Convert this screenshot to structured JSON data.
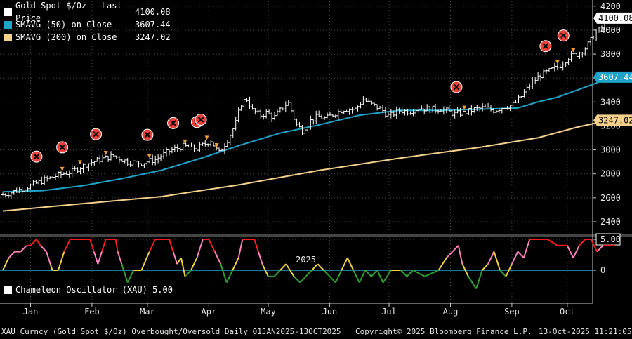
{
  "chart_data": {
    "type": "line",
    "title": "Gold Spot $/Oz",
    "legend": [
      {
        "name": "Gold Spot $/Oz - Last Price",
        "value": "4100.08",
        "color": "#ffffff"
      },
      {
        "name": "SMAVG (50)  on Close",
        "value": "3607.44",
        "color": "#1fa3c8"
      },
      {
        "name": "SMAVG (200)  on Close",
        "value": "3247.02",
        "color": "#f5d08a"
      }
    ],
    "y_axis": {
      "ticks": [
        2400,
        2600,
        2800,
        3000,
        3200,
        3400,
        3600,
        3800,
        4000,
        4200
      ],
      "range": [
        2300,
        4240
      ]
    },
    "x_axis": {
      "months": [
        "Jan",
        "Feb",
        "Mar",
        "Apr",
        "May",
        "Jun",
        "Jul",
        "Aug",
        "Sep",
        "Oct"
      ],
      "year_label": "2025",
      "range_days": [
        0,
        290
      ]
    },
    "last_value_tags": [
      {
        "value": 4100.08,
        "label": "4100.08",
        "color": "#ffffff",
        "text_color": "#000000"
      },
      {
        "value": 3607.44,
        "label": "3607.44",
        "color": "#1fa3c8",
        "text_color": "#ffffff"
      },
      {
        "value": 3247.02,
        "label": "3247.02",
        "color": "#f5d08a",
        "text_color": "#000000"
      }
    ],
    "series": [
      {
        "name": "Gold Spot $/Oz - Last Price",
        "style": "ohlc-bars",
        "color": "#ffffff",
        "points": [
          [
            0,
            2625
          ],
          [
            7,
            2660
          ],
          [
            14,
            2700
          ],
          [
            21,
            2750
          ],
          [
            28,
            2790
          ],
          [
            35,
            2820
          ],
          [
            42,
            2880
          ],
          [
            49,
            2920
          ],
          [
            56,
            2950
          ],
          [
            63,
            2900
          ],
          [
            70,
            2890
          ],
          [
            77,
            2920
          ],
          [
            84,
            2990
          ],
          [
            91,
            3030
          ],
          [
            98,
            3010
          ],
          [
            105,
            3080
          ],
          [
            109,
            2970
          ],
          [
            114,
            3100
          ],
          [
            118,
            3240
          ],
          [
            120,
            3380
          ],
          [
            123,
            3430
          ],
          [
            126,
            3330
          ],
          [
            130,
            3290
          ],
          [
            133,
            3310
          ],
          [
            137,
            3270
          ],
          [
            140,
            3330
          ],
          [
            144,
            3400
          ],
          [
            148,
            3220
          ],
          [
            151,
            3160
          ],
          [
            155,
            3240
          ],
          [
            159,
            3280
          ],
          [
            163,
            3260
          ],
          [
            167,
            3300
          ],
          [
            172,
            3340
          ],
          [
            178,
            3340
          ],
          [
            182,
            3420
          ],
          [
            186,
            3380
          ],
          [
            191,
            3340
          ],
          [
            195,
            3280
          ],
          [
            200,
            3330
          ],
          [
            205,
            3320
          ],
          [
            210,
            3350
          ],
          [
            215,
            3340
          ],
          [
            222,
            3340
          ],
          [
            228,
            3300
          ],
          [
            233,
            3310
          ],
          [
            238,
            3340
          ],
          [
            243,
            3350
          ],
          [
            248,
            3330
          ],
          [
            253,
            3360
          ],
          [
            258,
            3380
          ],
          [
            262,
            3450
          ],
          [
            266,
            3540
          ],
          [
            271,
            3620
          ],
          [
            276,
            3660
          ],
          [
            281,
            3700
          ],
          [
            286,
            3780
          ],
          [
            290,
            3800
          ],
          [
            294,
            3850
          ],
          [
            297,
            3920
          ],
          [
            300,
            3990
          ],
          [
            303,
            4030
          ],
          [
            306,
            4100
          ]
        ]
      },
      {
        "name": "SMAVG (50)  on Close",
        "style": "line",
        "color": "#1fa3c8",
        "points": [
          [
            0,
            2650
          ],
          [
            20,
            2660
          ],
          [
            40,
            2700
          ],
          [
            60,
            2760
          ],
          [
            80,
            2830
          ],
          [
            100,
            2930
          ],
          [
            120,
            3040
          ],
          [
            140,
            3140
          ],
          [
            160,
            3210
          ],
          [
            180,
            3290
          ],
          [
            200,
            3330
          ],
          [
            220,
            3330
          ],
          [
            240,
            3340
          ],
          [
            260,
            3350
          ],
          [
            270,
            3400
          ],
          [
            280,
            3440
          ],
          [
            290,
            3500
          ],
          [
            300,
            3560
          ],
          [
            306,
            3607
          ]
        ]
      },
      {
        "name": "SMAVG (200)  on Close",
        "style": "line",
        "color": "#f5d08a",
        "points": [
          [
            0,
            2490
          ],
          [
            40,
            2550
          ],
          [
            80,
            2610
          ],
          [
            120,
            2710
          ],
          [
            160,
            2830
          ],
          [
            200,
            2930
          ],
          [
            240,
            3020
          ],
          [
            270,
            3100
          ],
          [
            290,
            3190
          ],
          [
            306,
            3247
          ]
        ]
      },
      {
        "name": "Chameleon Oscillator (XAU)",
        "style": "oscillator",
        "value_label": "5.00",
        "range": [
          -5,
          5
        ],
        "points": [
          [
            0,
            0
          ],
          [
            3,
            2
          ],
          [
            6,
            3
          ],
          [
            9,
            3
          ],
          [
            12,
            4
          ],
          [
            14,
            4
          ],
          [
            17,
            5
          ],
          [
            19,
            4
          ],
          [
            22,
            3
          ],
          [
            24,
            1
          ],
          [
            25,
            0
          ],
          [
            28,
            0
          ],
          [
            31,
            3
          ],
          [
            34,
            5
          ],
          [
            37,
            5
          ],
          [
            40,
            5
          ],
          [
            42,
            5
          ],
          [
            44,
            5
          ],
          [
            46,
            3
          ],
          [
            48,
            1
          ],
          [
            50,
            3
          ],
          [
            52,
            5
          ],
          [
            55,
            5
          ],
          [
            57,
            5
          ],
          [
            58,
            3
          ],
          [
            60,
            1
          ],
          [
            63,
            -2
          ],
          [
            66,
            0
          ],
          [
            70,
            0
          ],
          [
            74,
            3
          ],
          [
            77,
            5
          ],
          [
            80,
            5
          ],
          [
            82,
            5
          ],
          [
            84,
            5
          ],
          [
            86,
            3
          ],
          [
            88,
            1
          ],
          [
            90,
            2
          ],
          [
            92,
            -1
          ],
          [
            95,
            0
          ],
          [
            98,
            2
          ],
          [
            101,
            5
          ],
          [
            104,
            5
          ],
          [
            107,
            3
          ],
          [
            110,
            1
          ],
          [
            113,
            -2
          ],
          [
            116,
            0
          ],
          [
            119,
            2
          ],
          [
            121,
            5
          ],
          [
            125,
            5
          ],
          [
            127,
            5
          ],
          [
            129,
            3
          ],
          [
            131,
            1
          ],
          [
            134,
            -1
          ],
          [
            137,
            -1
          ],
          [
            140,
            0
          ],
          [
            143,
            1
          ],
          [
            147,
            -1
          ],
          [
            150,
            -2
          ],
          [
            153,
            -1
          ],
          [
            156,
            0
          ],
          [
            159,
            1
          ],
          [
            162,
            0
          ],
          [
            165,
            -1
          ],
          [
            168,
            -2
          ],
          [
            171,
            0
          ],
          [
            174,
            2
          ],
          [
            177,
            0
          ],
          [
            180,
            -2
          ],
          [
            183,
            0
          ],
          [
            186,
            -1
          ],
          [
            189,
            0
          ],
          [
            192,
            -2
          ],
          [
            196,
            0
          ],
          [
            201,
            0
          ],
          [
            204,
            -1
          ],
          [
            207,
            0
          ],
          [
            213,
            -1
          ],
          [
            220,
            0
          ],
          [
            224,
            2
          ],
          [
            227,
            3
          ],
          [
            230,
            4
          ],
          [
            232,
            1
          ],
          [
            235,
            -1
          ],
          [
            239,
            -3
          ],
          [
            242,
            0
          ],
          [
            245,
            1
          ],
          [
            248,
            3
          ],
          [
            251,
            0
          ],
          [
            254,
            -1
          ],
          [
            257,
            1
          ],
          [
            260,
            3
          ],
          [
            263,
            2
          ],
          [
            266,
            5
          ],
          [
            270,
            5
          ],
          [
            275,
            5
          ],
          [
            280,
            4
          ],
          [
            285,
            4
          ],
          [
            288,
            2
          ],
          [
            291,
            4
          ],
          [
            294,
            5
          ],
          [
            297,
            5
          ],
          [
            300,
            3
          ],
          [
            303,
            4
          ],
          [
            306,
            4
          ],
          [
            309,
            4
          ]
        ]
      }
    ],
    "annotations": {
      "overbought_markers_days": [
        17,
        30,
        47,
        73,
        86,
        98,
        100,
        229,
        274,
        283
      ],
      "arrow_days": [
        30,
        39,
        52,
        74,
        92,
        103,
        108,
        233,
        280,
        288
      ]
    }
  },
  "footer": {
    "left": "XAU Curncy (Gold Spot  $/Oz) Overbought/Oversold Daily 01JAN2025-13OCT2025",
    "center": "Copyright© 2025 Bloomberg Finance L.P.",
    "right": "13-Oct-2025 11:21:05"
  },
  "colors": {
    "background": "#000000",
    "grid": "#4a4a4a",
    "marker_fill": "#e8423b",
    "arrow": "#f0a030",
    "osc_baseline": "#1fa3c8"
  }
}
